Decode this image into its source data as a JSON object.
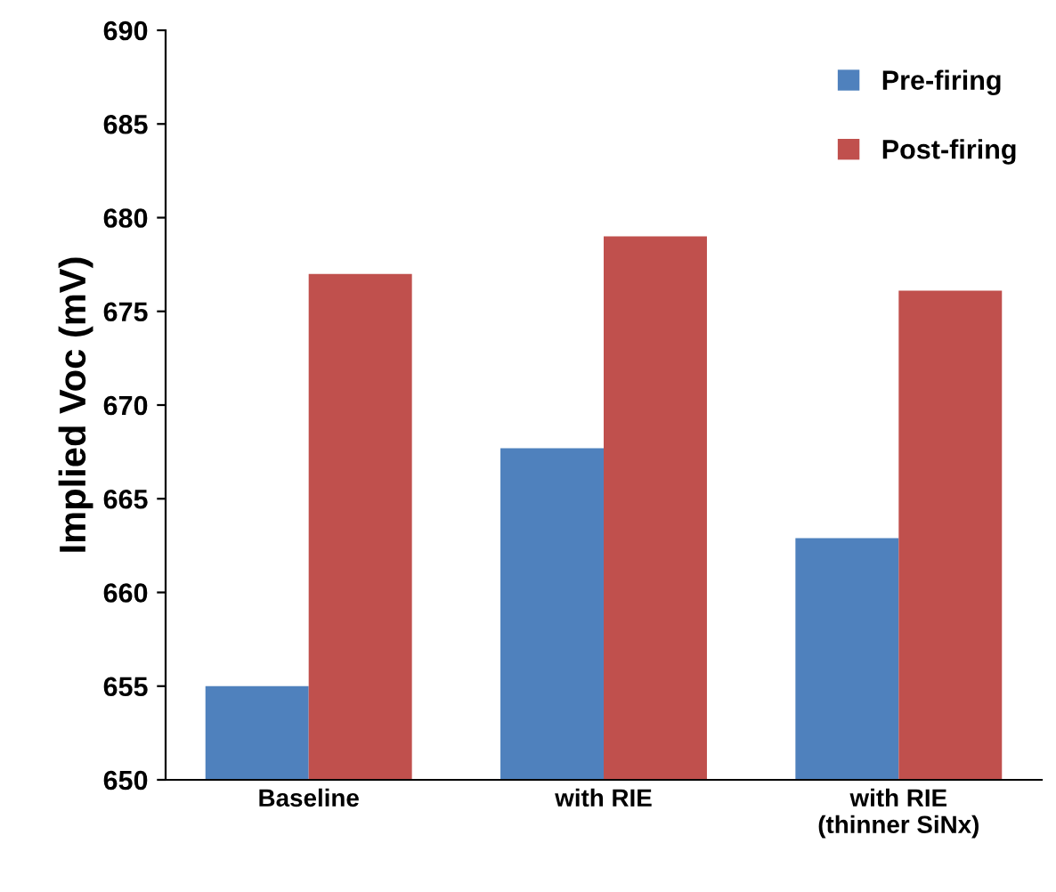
{
  "chart_data": {
    "type": "bar",
    "ylabel": "Implied Voc (mV)",
    "categories": [
      "Baseline",
      "with RIE",
      "with RIE\n(thinner SiNx)"
    ],
    "series": [
      {
        "name": "Pre-firing",
        "color": "#4f81bd",
        "values": [
          655,
          667.7,
          662.9
        ]
      },
      {
        "name": "Post-firing",
        "color": "#c0504d",
        "values": [
          677,
          679,
          676.1
        ]
      }
    ],
    "ylim": [
      650,
      690
    ],
    "yticks": [
      650,
      655,
      660,
      665,
      670,
      675,
      680,
      685,
      690
    ],
    "grid": false,
    "legend": "top right"
  }
}
